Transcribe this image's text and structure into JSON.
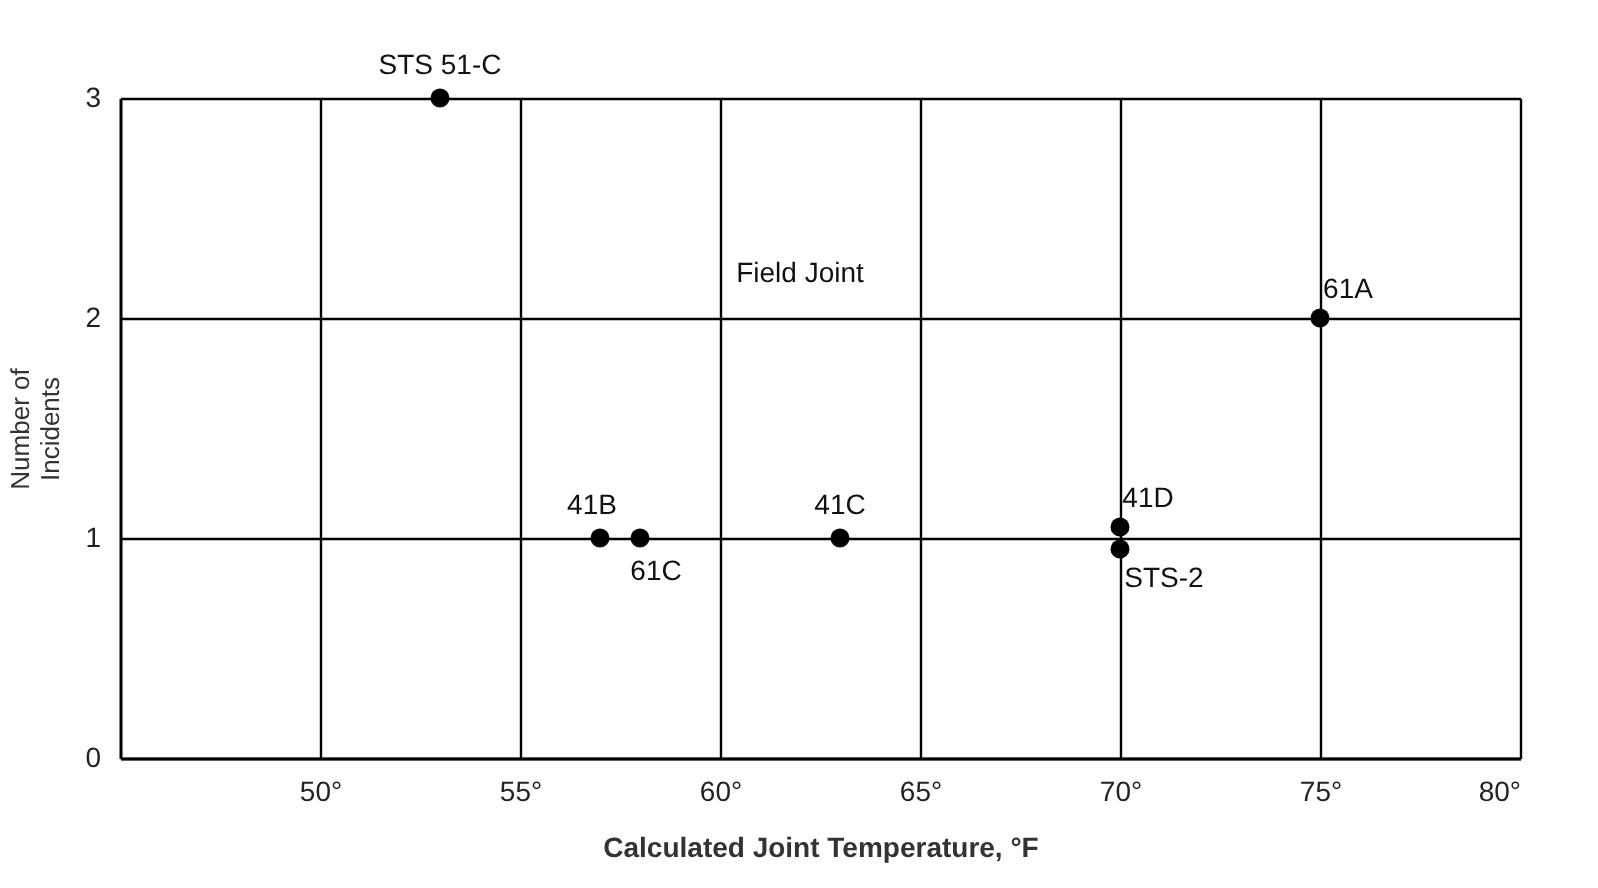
{
  "chart_data": {
    "type": "scatter",
    "xlabel": "Calculated Joint Temperature, °F",
    "ylabel": "Number of Incidents",
    "x": [
      53,
      57,
      58,
      63,
      70,
      70,
      75
    ],
    "series": [
      {
        "color": "#000000",
        "values": [
          3,
          1,
          1,
          1,
          1.05,
          0.95,
          2
        ]
      }
    ],
    "xlim": [
      45,
      80
    ],
    "xticks": [
      {
        "value": 50,
        "label": "50°"
      },
      {
        "value": 55,
        "label": "55°"
      },
      {
        "value": 60,
        "label": "60°"
      },
      {
        "value": 65,
        "label": "65°"
      },
      {
        "value": 70,
        "label": "70°"
      },
      {
        "value": 75,
        "label": "75°"
      },
      {
        "value": 80,
        "label": "80°"
      }
    ],
    "ylim": [
      0,
      3
    ],
    "yticks": [
      0,
      1,
      2,
      3
    ],
    "grid": true,
    "marker": "circle",
    "annotations": [
      {
        "text": "STS 51-C",
        "x": 53,
        "y": 3
      },
      {
        "text": "41B",
        "x": 57,
        "y": 1
      },
      {
        "text": "61C",
        "x": 58,
        "y": 1
      },
      {
        "text": "41C",
        "x": 63,
        "y": 1
      },
      {
        "text": "41D",
        "x": 70,
        "y": 1.05
      },
      {
        "text": "STS-2",
        "x": 70,
        "y": 0.95
      },
      {
        "text": "61A",
        "x": 75,
        "y": 2
      },
      "Field Joint"
    ]
  }
}
